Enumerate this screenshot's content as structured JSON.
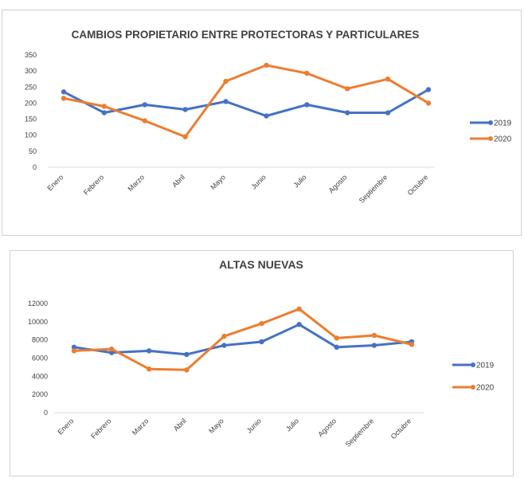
{
  "chart_data": [
    {
      "type": "line",
      "title": "CAMBIOS PROPIETARIO ENTRE PROTECTORAS Y PARTICULARES",
      "xlabel": "",
      "ylabel": "",
      "categories": [
        "Enero",
        "Febrero",
        "Marzo",
        "Abril",
        "Mayo",
        "Junio",
        "Julio",
        "Agosto",
        "Septiembre",
        "Octubre"
      ],
      "yticks": [
        "0",
        "50",
        "100",
        "150",
        "200",
        "250",
        "300",
        "350"
      ],
      "ylim": [
        0,
        350
      ],
      "grid": false,
      "legend_position": "right",
      "series": [
        {
          "name": "2019",
          "color": "#4472c4",
          "values": [
            235,
            170,
            195,
            180,
            205,
            160,
            195,
            170,
            170,
            242
          ]
        },
        {
          "name": "2020",
          "color": "#ed7d31",
          "values": [
            215,
            190,
            145,
            95,
            268,
            318,
            293,
            245,
            275,
            200
          ]
        }
      ]
    },
    {
      "type": "line",
      "title": "ALTAS NUEVAS",
      "xlabel": "",
      "ylabel": "",
      "categories": [
        "Enero",
        "Febrero",
        "Marzo",
        "Abril",
        "Mayo",
        "Junio",
        "Julio",
        "Agosto",
        "Septiembre",
        "Octubre"
      ],
      "yticks": [
        "0",
        "2000",
        "4000",
        "6000",
        "8000",
        "10000",
        "12000"
      ],
      "ylim": [
        0,
        12000
      ],
      "grid": false,
      "legend_position": "right",
      "series": [
        {
          "name": "2019",
          "color": "#4472c4",
          "values": [
            7200,
            6600,
            6800,
            6400,
            7400,
            7800,
            9700,
            7200,
            7400,
            7800
          ]
        },
        {
          "name": "2020",
          "color": "#ed7d31",
          "values": [
            6800,
            7000,
            4800,
            4700,
            8400,
            9800,
            11400,
            8200,
            8500,
            7500
          ]
        }
      ]
    }
  ]
}
